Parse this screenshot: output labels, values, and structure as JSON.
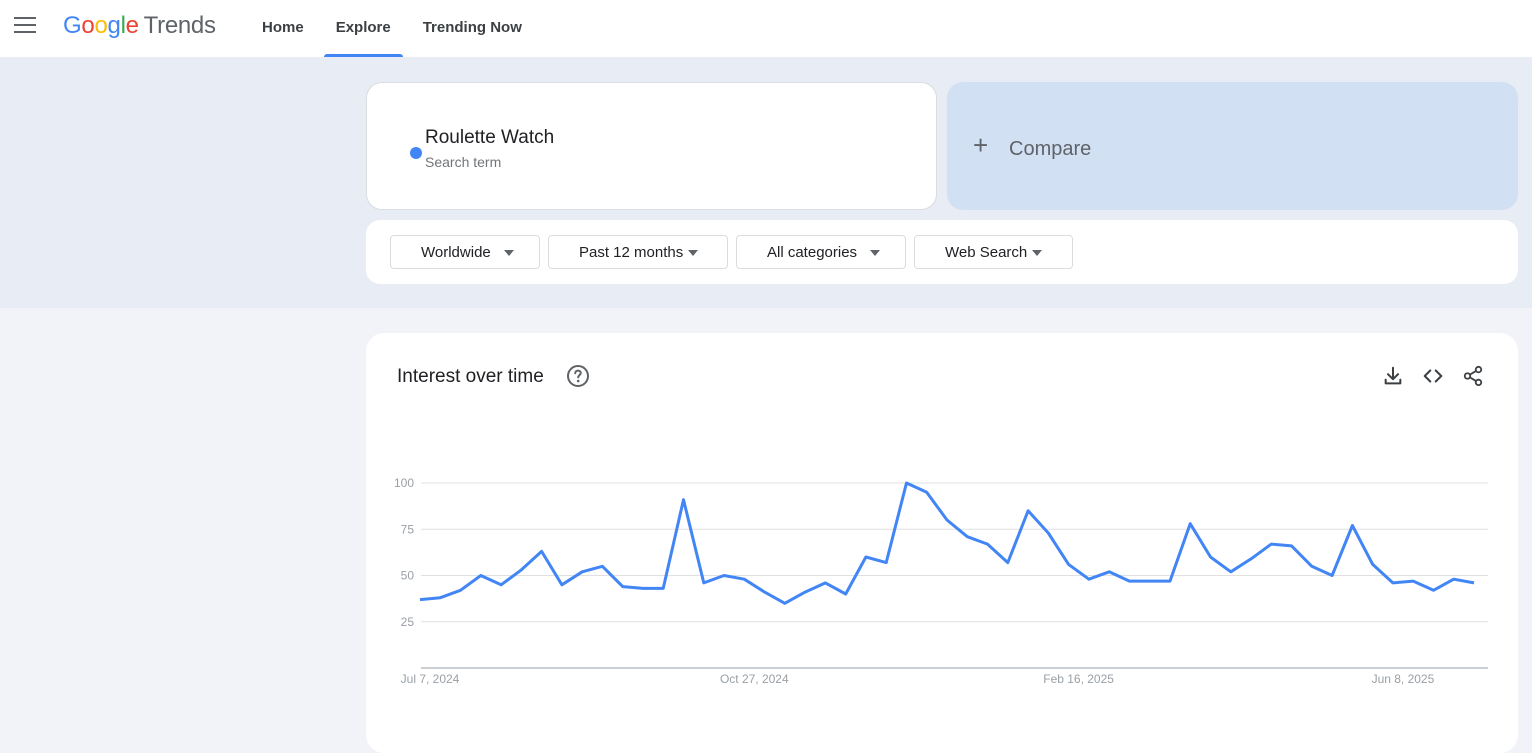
{
  "header": {
    "logo_letters": [
      "G",
      "o",
      "o",
      "g",
      "l",
      "e"
    ],
    "logo_product": "Trends",
    "nav": [
      {
        "label": "Home"
      },
      {
        "label": "Explore"
      },
      {
        "label": "Trending Now"
      }
    ],
    "active_nav": "Explore"
  },
  "search": {
    "term": "Roulette Watch",
    "term_type": "Search term",
    "term_color": "#4285f4",
    "compare_label": "Compare"
  },
  "filters": {
    "region": "Worldwide",
    "time_range": "Past 12 months",
    "category": "All categories",
    "search_type": "Web Search"
  },
  "panel": {
    "title": "Interest over time",
    "icons": [
      "help-icon",
      "download-icon",
      "embed-icon",
      "share-icon"
    ]
  },
  "chart_data": {
    "type": "line",
    "title": "Interest over time",
    "xlabel": "",
    "ylabel": "",
    "ylim": [
      0,
      100
    ],
    "yticks": [
      25,
      50,
      75,
      100
    ],
    "x_tick_labels": [
      {
        "label": "Jul 7, 2024",
        "week_index": 0
      },
      {
        "label": "Oct 27, 2024",
        "week_index": 16
      },
      {
        "label": "Feb 16, 2025",
        "week_index": 32
      },
      {
        "label": "Jun 8, 2025",
        "week_index": 48
      }
    ],
    "grid": true,
    "series": [
      {
        "color": "#4285f4",
        "values": [
          37,
          38,
          42,
          50,
          45,
          53,
          63,
          45,
          52,
          55,
          44,
          43,
          43,
          91,
          46,
          50,
          48,
          41,
          35,
          41,
          46,
          40,
          60,
          57,
          100,
          95,
          80,
          71,
          67,
          57,
          85,
          73,
          56,
          48,
          52,
          47,
          47,
          47,
          78,
          60,
          52,
          59,
          67,
          66,
          55,
          50,
          77,
          56,
          46,
          47,
          42,
          48,
          46
        ]
      }
    ]
  }
}
